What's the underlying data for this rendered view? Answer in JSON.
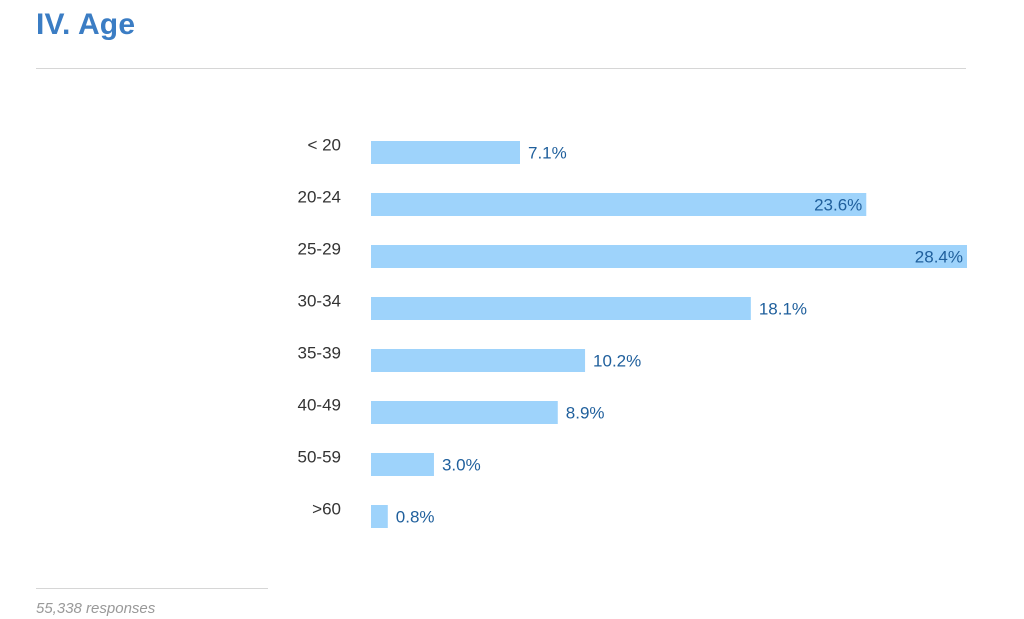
{
  "section": {
    "title": "IV. Age"
  },
  "footer": {
    "responses": "55,338 responses"
  },
  "colors": {
    "title": "#3b7dc4",
    "bar": "#9ed3fb",
    "value_label": "#1f5f9c",
    "category_label": "#333333"
  },
  "chart_data": {
    "type": "bar",
    "orientation": "horizontal",
    "categories": [
      "< 20",
      "20-24",
      "25-29",
      "30-34",
      "35-39",
      "40-49",
      "50-59",
      ">60"
    ],
    "values": [
      7.1,
      23.6,
      28.4,
      18.1,
      10.2,
      8.9,
      3.0,
      0.8
    ],
    "value_labels": [
      "7.1%",
      "23.6%",
      "28.4%",
      "18.1%",
      "10.2%",
      "8.9%",
      "3.0%",
      "0.8%"
    ],
    "unit": "%",
    "xlim": [
      0,
      28.4
    ],
    "grid": false,
    "legend": "none"
  }
}
